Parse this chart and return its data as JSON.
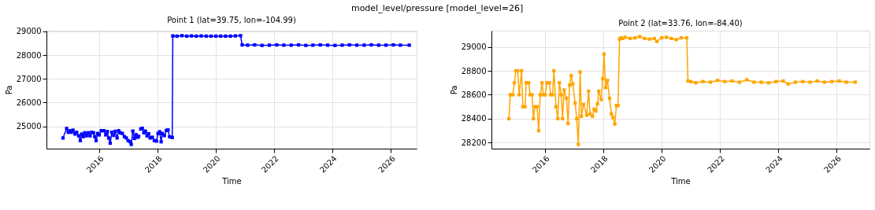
{
  "chart_data": [
    {
      "type": "line",
      "title": "Point 1 (lat=39.75, lon=-104.99)",
      "xlabel": "Time",
      "ylabel": "Pa",
      "annotations": [
        "model_level/pressure [model_level=26]"
      ],
      "xlim": [
        "2014-03-10",
        "2026-11-20"
      ],
      "xticks": [
        "2016",
        "2018",
        "2020",
        "2022",
        "2024",
        "2026"
      ],
      "ylim": [
        24060,
        29030
      ],
      "yticks": [
        25000,
        26000,
        27000,
        28000,
        29000
      ],
      "grid": true,
      "marker": "square",
      "line_style": "solid",
      "series": [
        {
          "color": "#0000ff",
          "x": [
            "2014-10-03",
            "2014-11-18",
            "2014-12-08",
            "2014-12-28",
            "2015-01-16",
            "2015-02-05",
            "2015-03-03",
            "2015-03-23",
            "2015-04-18",
            "2015-05-08",
            "2015-05-25",
            "2015-06-13",
            "2015-07-03",
            "2015-07-23",
            "2015-08-15",
            "2015-09-07",
            "2015-09-27",
            "2015-10-20",
            "2015-11-05",
            "2015-11-22",
            "2015-12-11",
            "2015-12-31",
            "2016-01-26",
            "2016-02-28",
            "2016-03-22",
            "2016-04-11",
            "2016-04-27",
            "2016-05-17",
            "2016-06-06",
            "2016-06-29",
            "2016-07-19",
            "2016-08-11",
            "2016-08-30",
            "2016-09-19",
            "2016-10-16",
            "2016-11-11",
            "2016-12-04",
            "2016-12-27",
            "2017-01-22",
            "2017-02-04",
            "2017-02-24",
            "2017-03-16",
            "2017-04-05",
            "2017-04-24",
            "2017-05-08",
            "2017-05-22",
            "2017-06-03",
            "2017-06-23",
            "2017-07-12",
            "2017-08-01",
            "2017-08-21",
            "2017-09-10",
            "2017-09-29",
            "2017-10-26",
            "2017-11-21",
            "2017-12-17",
            "2018-01-06",
            "2018-01-26",
            "2018-02-14",
            "2018-02-28",
            "2018-03-26",
            "2018-04-21",
            "2018-05-11",
            "2018-05-31",
            "2018-07-03",
            "2018-07-10",
            "2018-09-01",
            "2018-11-01",
            "2019-01-01",
            "2019-03-01",
            "2019-05-01",
            "2019-07-01",
            "2019-09-01",
            "2019-11-01",
            "2020-01-01",
            "2020-03-01",
            "2020-05-01",
            "2020-07-01",
            "2020-09-01",
            "2020-11-05",
            "2020-11-25",
            "2021-02-01",
            "2021-05-01",
            "2021-08-01",
            "2021-11-01",
            "2022-02-01",
            "2022-05-01",
            "2022-08-01",
            "2022-11-01",
            "2023-02-01",
            "2023-05-01",
            "2023-08-01",
            "2023-11-01",
            "2024-02-01",
            "2024-05-01",
            "2024-08-01",
            "2024-11-01",
            "2025-02-01",
            "2025-05-01",
            "2025-08-01",
            "2025-11-01",
            "2026-02-01",
            "2026-05-01",
            "2026-08-20"
          ],
          "values": [
            24510,
            24910,
            24750,
            24815,
            24750,
            24840,
            24675,
            24750,
            24600,
            24400,
            24675,
            24565,
            24730,
            24600,
            24730,
            24600,
            24750,
            24730,
            24565,
            24400,
            24700,
            24640,
            24815,
            24815,
            24640,
            24780,
            24510,
            24290,
            24750,
            24620,
            24790,
            24510,
            24815,
            24730,
            24700,
            24565,
            24510,
            24400,
            24350,
            24240,
            24800,
            24490,
            24650,
            24540,
            24580,
            null,
            24890,
            24920,
            24730,
            24800,
            24600,
            24690,
            24510,
            24540,
            24400,
            24380,
            24700,
            24770,
            24350,
            24700,
            24610,
            24830,
            24850,
            24560,
            24530,
            28810,
            28800,
            28820,
            28800,
            28810,
            28800,
            28810,
            28800,
            28800,
            28800,
            28800,
            28800,
            28800,
            28810,
            28820,
            28430,
            28420,
            28430,
            28410,
            28420,
            28430,
            28420,
            28420,
            28430,
            28410,
            28420,
            28430,
            28420,
            28410,
            28420,
            28430,
            28420,
            28420,
            28430,
            28420,
            28420,
            28430,
            28420,
            28420
          ]
        }
      ]
    },
    {
      "type": "line",
      "title": "Point 2 (lat=33.76, lon=-84.40)",
      "xlabel": "Time",
      "ylabel": "Pa",
      "xlim": [
        "2014-03-01",
        "2027-02-15"
      ],
      "xticks": [
        "2016",
        "2018",
        "2020",
        "2022",
        "2024",
        "2026"
      ],
      "ylim": [
        28150,
        29135
      ],
      "yticks": [
        28200,
        28400,
        28600,
        28800,
        29000
      ],
      "grid": true,
      "marker": "square",
      "line_style": "solid",
      "series": [
        {
          "color": "#ffa500",
          "x": [
            "2014-10-06",
            "2014-10-22",
            "2014-11-24",
            "2014-12-14",
            "2014-12-31",
            "2015-01-23",
            "2015-02-11",
            "2015-03-13",
            "2015-03-29",
            "2015-04-25",
            "2015-05-11",
            "2015-06-10",
            "2015-06-29",
            "2015-07-23",
            "2015-08-08",
            "2015-08-28",
            "2015-09-23",
            "2015-10-13",
            "2015-11-02",
            "2015-11-25",
            "2015-12-11",
            "2016-01-03",
            "2016-01-26",
            "2016-02-25",
            "2016-03-12",
            "2016-04-04",
            "2016-04-21",
            "2016-05-17",
            "2016-06-09",
            "2016-06-29",
            "2016-07-22",
            "2016-08-07",
            "2016-08-27",
            "2016-09-26",
            "2016-10-15",
            "2016-11-04",
            "2016-11-24",
            "2016-12-13",
            "2017-01-12",
            "2017-02-01",
            "2017-02-21",
            "2017-03-16",
            "2017-04-01",
            "2017-04-27",
            "2017-06-06",
            "2017-06-29",
            "2017-07-19",
            "2017-08-17",
            "2017-09-06",
            "2017-09-29",
            "2017-10-19",
            "2017-11-04",
            "2017-12-04",
            "2017-12-24",
            "2018-01-09",
            "2018-01-29",
            "2018-02-21",
            "2018-03-19",
            "2018-04-11",
            "2018-05-01",
            "2018-05-24",
            "2018-06-13",
            "2018-07-03",
            "2018-07-22",
            "2018-08-08",
            "2018-09-01",
            "2018-10-01",
            "2018-12-01",
            "2019-02-01",
            "2019-04-01",
            "2019-06-01",
            "2019-08-01",
            "2019-10-01",
            "2019-11-01",
            "2020-01-01",
            "2020-03-01",
            "2020-05-01",
            "2020-07-01",
            "2020-09-01",
            "2020-11-10",
            "2020-11-25",
            "2021-01-01",
            "2021-03-01",
            "2021-06-01",
            "2021-09-01",
            "2021-12-01",
            "2022-03-01",
            "2022-06-01",
            "2022-09-01",
            "2022-12-01",
            "2023-03-01",
            "2023-06-01",
            "2023-09-01",
            "2023-12-01",
            "2024-03-01",
            "2024-05-01",
            "2024-08-01",
            "2024-11-01",
            "2025-02-01",
            "2025-05-01",
            "2025-08-01",
            "2025-11-01",
            "2026-02-01",
            "2026-05-01",
            "2026-08-20"
          ],
          "values": [
            28400,
            28600,
            28600,
            28700,
            28800,
            28800,
            28600,
            28800,
            28500,
            28500,
            28700,
            28700,
            28600,
            28600,
            28400,
            28500,
            28500,
            28300,
            28600,
            28700,
            28600,
            28600,
            28700,
            28700,
            28600,
            28600,
            28800,
            28500,
            28400,
            28700,
            28600,
            28400,
            28640,
            28570,
            28360,
            28680,
            28760,
            28690,
            28530,
            28400,
            28185,
            28790,
            28420,
            28520,
            28430,
            28630,
            28440,
            28420,
            28480,
            28465,
            28525,
            28630,
            28560,
            28735,
            28940,
            28660,
            28720,
            28570,
            28440,
            28410,
            28355,
            28510,
            28510,
            29065,
            29075,
            29070,
            29080,
            29070,
            29075,
            29085,
            29070,
            29065,
            29070,
            29045,
            29075,
            29080,
            29070,
            29060,
            29075,
            29075,
            28715,
            28710,
            28700,
            28710,
            28705,
            28720,
            28710,
            28715,
            28705,
            28725,
            28705,
            28705,
            28700,
            28710,
            28715,
            28690,
            28705,
            28710,
            28705,
            28715,
            28705,
            28710,
            28715,
            28705,
            28705
          ]
        }
      ]
    }
  ]
}
